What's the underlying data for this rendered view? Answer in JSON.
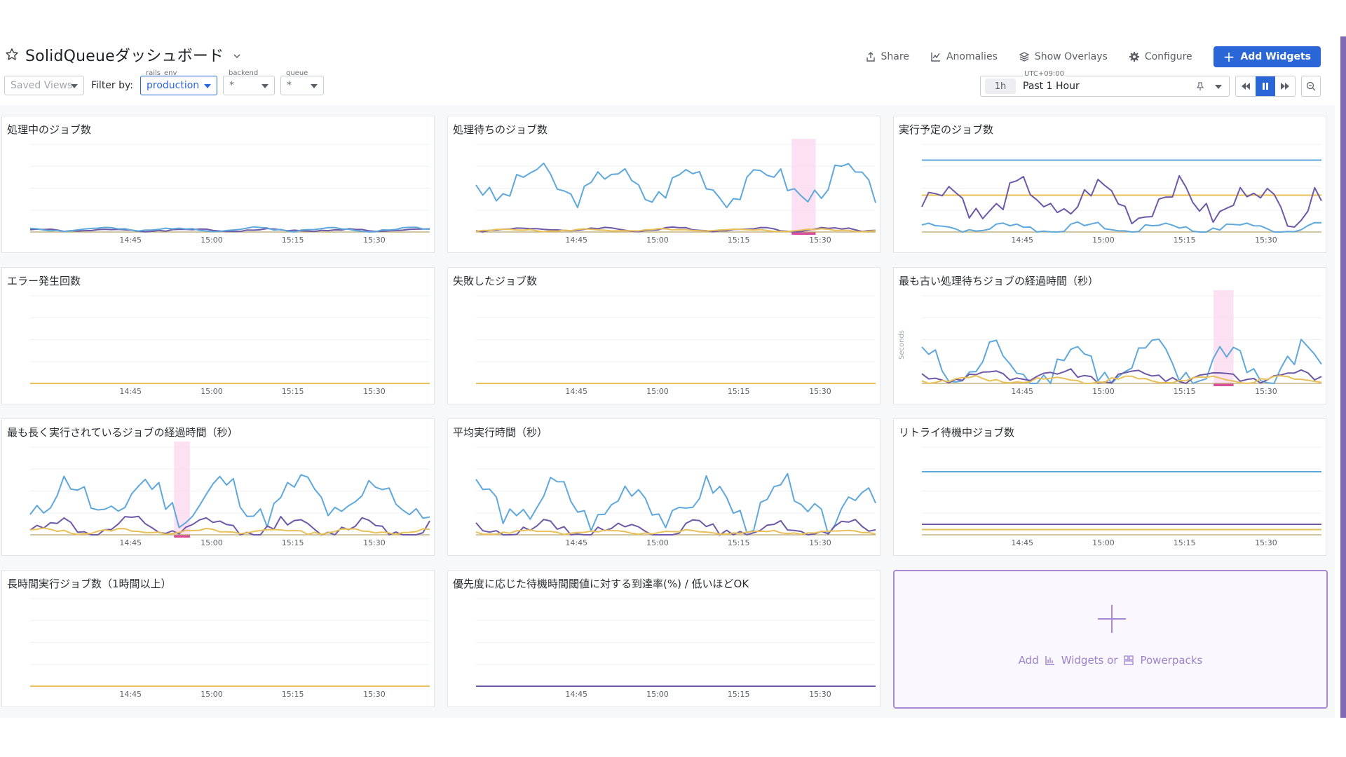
{
  "dashboard": {
    "title": "SolidQueueダッシュボード"
  },
  "actions": {
    "share": "Share",
    "anomalies": "Anomalies",
    "overlays": "Show Overlays",
    "configure": "Configure",
    "add_widgets": "Add Widgets"
  },
  "filters": {
    "saved_views": "Saved Views",
    "filter_by": "Filter by:",
    "vars": [
      {
        "label": "rails_env",
        "value": "production"
      },
      {
        "label": "backend",
        "value": "*"
      },
      {
        "label": "queue",
        "value": "*"
      }
    ]
  },
  "time": {
    "tz": "UTC+09:00",
    "badge": "1h",
    "range": "Past 1 Hour"
  },
  "colors": {
    "blue": "#5fa8dc",
    "purple": "#6e58a8",
    "yellow": "#e8c057",
    "highlight": "#f9d7ee",
    "highlight_bar": "#d94f9a"
  },
  "x_ticks": [
    "14:45",
    "15:00",
    "15:15",
    "15:30"
  ],
  "widgets": [
    {
      "title": "処理中のジョブ数"
    },
    {
      "title": "処理待ちのジョブ数"
    },
    {
      "title": "実行予定のジョブ数"
    },
    {
      "title": "エラー発生回数"
    },
    {
      "title": "失敗したジョブ数"
    },
    {
      "title": "最も古い処理待ちジョブの経過時間（秒）",
      "ylabel": "Seconds"
    },
    {
      "title": "最も長く実行されているジョブの経過時間（秒）"
    },
    {
      "title": "平均実行時間（秒）"
    },
    {
      "title": "リトライ待機中ジョブ数"
    },
    {
      "title": "長時間実行ジョブ数（1時間以上）"
    },
    {
      "title": "優先度に応じた待機時間閾値に対する到達率(%) / 低いほどOK"
    }
  ],
  "add_panel": {
    "add": "Add",
    "widgets_or": "Widgets or",
    "powerpacks": "Powerpacks"
  }
}
